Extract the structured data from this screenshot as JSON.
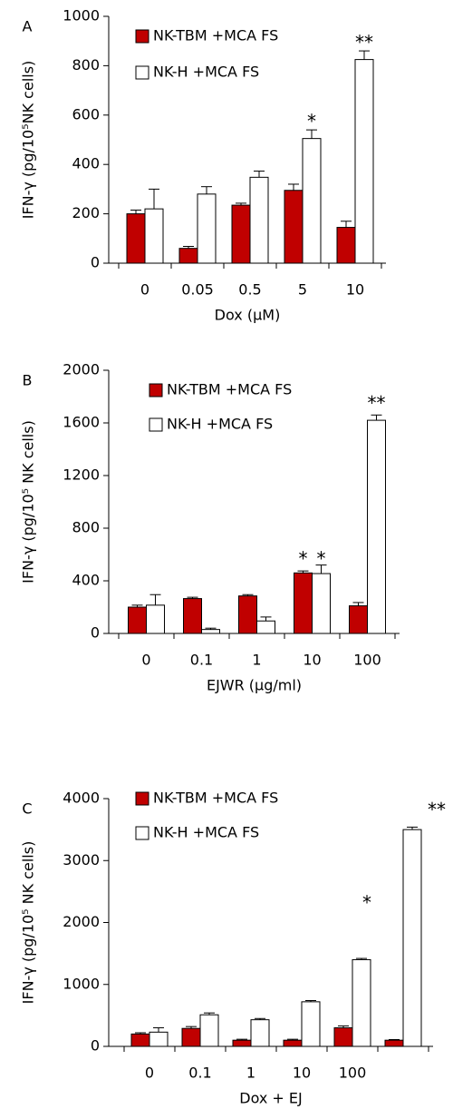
{
  "chart_data": [
    {
      "type": "bar",
      "label": "A",
      "xlabel": "Dox (µM)",
      "ylabel": "IFN-γ (pg/10⁵NK cells)",
      "categories": [
        "0",
        "0.05",
        "0.5",
        "5",
        "10"
      ],
      "ylim": [
        0,
        1000
      ],
      "yticks": [
        0,
        200,
        400,
        600,
        800,
        1000
      ],
      "series": [
        {
          "name": "NK-TBM +MCA FS",
          "color": "#c00000",
          "values": [
            200,
            60,
            235,
            295,
            145
          ],
          "errors": [
            15,
            8,
            8,
            25,
            25
          ]
        },
        {
          "name": "NK-H +MCA FS",
          "color": "#ffffff",
          "values": [
            220,
            280,
            348,
            505,
            825
          ],
          "errors": [
            80,
            30,
            25,
            35,
            35
          ]
        }
      ],
      "annotations": [
        "*",
        "**"
      ]
    },
    {
      "type": "bar",
      "label": "B",
      "xlabel": "EJWR (µg/ml)",
      "ylabel": "IFN-γ (pg/10⁵ NK cells)",
      "categories": [
        "0",
        "0.1",
        "1",
        "10",
        "100"
      ],
      "ylim": [
        0,
        2000
      ],
      "yticks": [
        0,
        400,
        800,
        1200,
        1600,
        2000
      ],
      "series": [
        {
          "name": "NK-TBM +MCA FS",
          "color": "#c00000",
          "values": [
            200,
            265,
            285,
            460,
            210
          ],
          "errors": [
            15,
            10,
            10,
            15,
            25
          ]
        },
        {
          "name": "NK-H +MCA FS",
          "color": "#ffffff",
          "values": [
            215,
            30,
            95,
            455,
            1620
          ],
          "errors": [
            80,
            10,
            30,
            65,
            40
          ]
        }
      ],
      "annotations": [
        "*",
        "*",
        "**"
      ]
    },
    {
      "type": "bar",
      "label": "C",
      "xlabel": "Dox + EJ",
      "ylabel": "IFN-γ (pg/10⁵ NK cells)",
      "categories": [
        "0",
        "0.1",
        "1",
        "10",
        "100",
        null
      ],
      "ylim": [
        0,
        4000
      ],
      "yticks": [
        0,
        1000,
        2000,
        3000,
        4000
      ],
      "series": [
        {
          "name": "NK-TBM +MCA FS",
          "color": "#c00000",
          "values": [
            200,
            290,
            100,
            100,
            300,
            100
          ],
          "errors": [
            20,
            30,
            15,
            15,
            30,
            10
          ]
        },
        {
          "name": "NK-H +MCA FS",
          "color": "#ffffff",
          "values": [
            230,
            510,
            430,
            720,
            1400,
            3500
          ],
          "errors": [
            70,
            30,
            20,
            20,
            20,
            40
          ]
        }
      ],
      "annotations": [
        "*",
        "**"
      ]
    }
  ]
}
